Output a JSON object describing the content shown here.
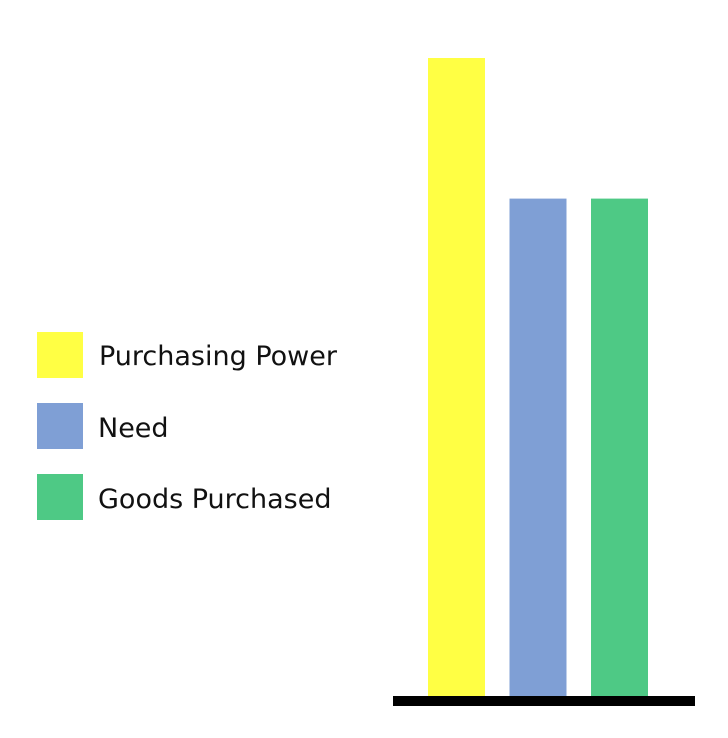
{
  "chart_data": {
    "type": "bar",
    "title": "",
    "xlabel": "",
    "ylabel": "",
    "ylim": [
      0,
      100
    ],
    "categories": [
      "Purchasing Power",
      "Need",
      "Goods Purchased"
    ],
    "values": [
      100,
      78,
      78
    ],
    "colors": [
      "#ffff44",
      "#7f9fd5",
      "#4ec985"
    ],
    "axis_color": "#000000",
    "grid": false,
    "legend": {
      "placement": "left",
      "entries": [
        {
          "label": "Purchasing Power",
          "color": "#ffff44"
        },
        {
          "label": "Need",
          "color": "#7f9fd5"
        },
        {
          "label": "Goods Purchased",
          "color": "#4ec985"
        }
      ]
    }
  }
}
